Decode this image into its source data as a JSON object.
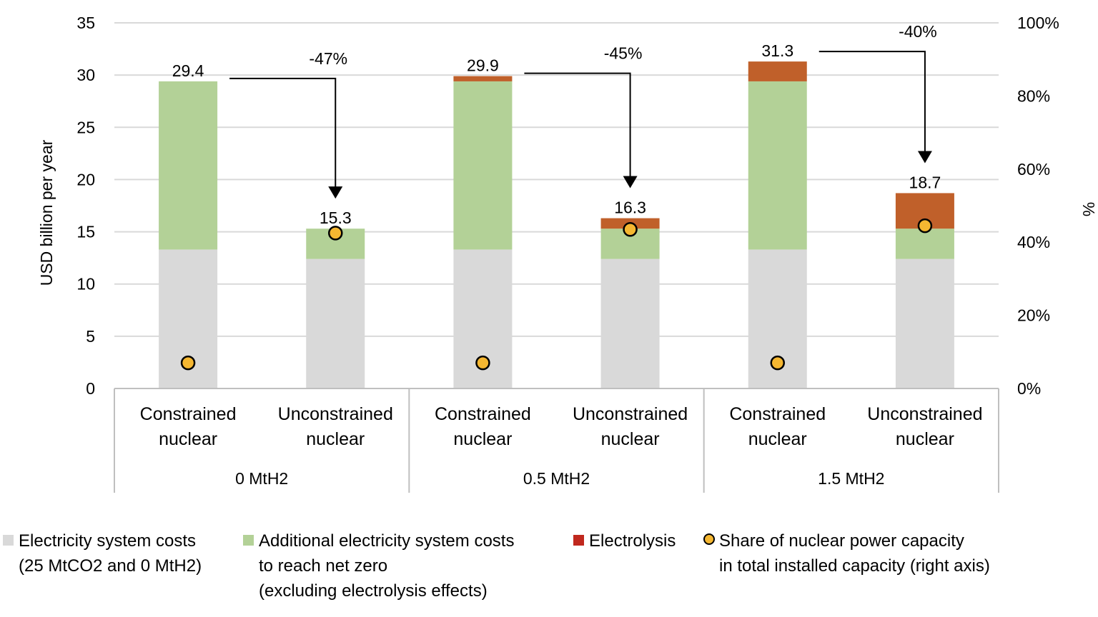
{
  "chart_data": {
    "type": "bar",
    "stacked": true,
    "ylabel": "USD billion per year",
    "y2label": "%",
    "ylim": [
      0,
      35
    ],
    "y2lim": [
      0,
      100
    ],
    "yticks": [
      "0",
      "5",
      "10",
      "15",
      "20",
      "25",
      "30",
      "35"
    ],
    "y2ticks": [
      "0%",
      "20%",
      "40%",
      "60%",
      "80%",
      "100%"
    ],
    "grid": true,
    "legend_position": "bottom",
    "groups": [
      "0 MtH2",
      "0.5 MtH2",
      "1.5 MtH2"
    ],
    "categories": [
      {
        "line1": "Constrained",
        "line2": "nuclear",
        "group": 0
      },
      {
        "line1": "Unconstrained",
        "line2": "nuclear",
        "group": 0
      },
      {
        "line1": "Constrained",
        "line2": "nuclear",
        "group": 1
      },
      {
        "line1": "Unconstrained",
        "line2": "nuclear",
        "group": 1
      },
      {
        "line1": "Constrained",
        "line2": "nuclear",
        "group": 2
      },
      {
        "line1": "Unconstrained",
        "line2": "nuclear",
        "group": 2
      }
    ],
    "series": [
      {
        "name": "Electricity system costs\n(25 MtCO2 and 0 MtH2)",
        "color": "#d9d9d9",
        "values": [
          13.3,
          12.4,
          13.3,
          12.4,
          13.3,
          12.4
        ]
      },
      {
        "name": "Additional electricity system costs\nto reach net zero\n(excluding electrolysis effects)",
        "color": "#b3d197",
        "values": [
          16.1,
          2.9,
          16.1,
          2.9,
          16.1,
          2.9
        ]
      },
      {
        "name": "Electrolysis",
        "color": "#c0602a",
        "legend_color": "#c0281e",
        "values": [
          0,
          0,
          0.5,
          1.0,
          1.9,
          3.4
        ]
      }
    ],
    "totals": [
      "29.4",
      "15.3",
      "29.9",
      "16.3",
      "31.3",
      "18.7"
    ],
    "share_series": {
      "name": "Share of nuclear power capacity\nin total installed capacity (right axis)",
      "color": "#f5b731",
      "values": [
        7,
        42.5,
        7,
        43.5,
        7,
        44.5
      ]
    },
    "changes": [
      "-47%",
      "-45%",
      "-40%"
    ]
  }
}
